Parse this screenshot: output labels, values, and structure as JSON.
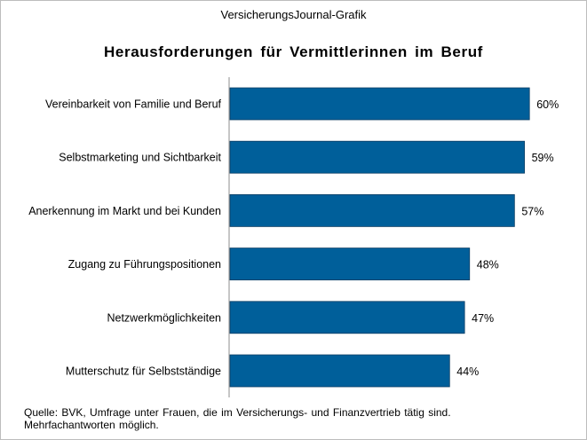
{
  "header": {
    "source_tag": "VersicherungsJournal-Grafik",
    "title": "Herausforderungen  für Vermittlerinnen  im Beruf"
  },
  "chart_data": {
    "type": "bar",
    "orientation": "horizontal",
    "categories": [
      "Vereinbarkeit von Familie und Beruf",
      "Selbstmarketing und Sichtbarkeit",
      "Anerkennung im Markt und bei Kunden",
      "Zugang zu Führungspositionen",
      "Netzwerkmöglichkeiten",
      "Mutterschutz für Selbstständige"
    ],
    "values": [
      60,
      59,
      57,
      48,
      47,
      44
    ],
    "value_labels": [
      "60%",
      "59%",
      "57%",
      "48%",
      "47%",
      "44%"
    ],
    "bar_color": "#005f9a",
    "xlim": [
      0,
      100
    ],
    "grid": false,
    "axis": "vertical-line-left"
  },
  "footer": {
    "line1": "Quelle: BVK, Umfrage  unter Frauen,  die im Versicherungs-  und Finanzvertrieb  tätig sind.",
    "line2": "Mehrfachantworten  möglich."
  }
}
